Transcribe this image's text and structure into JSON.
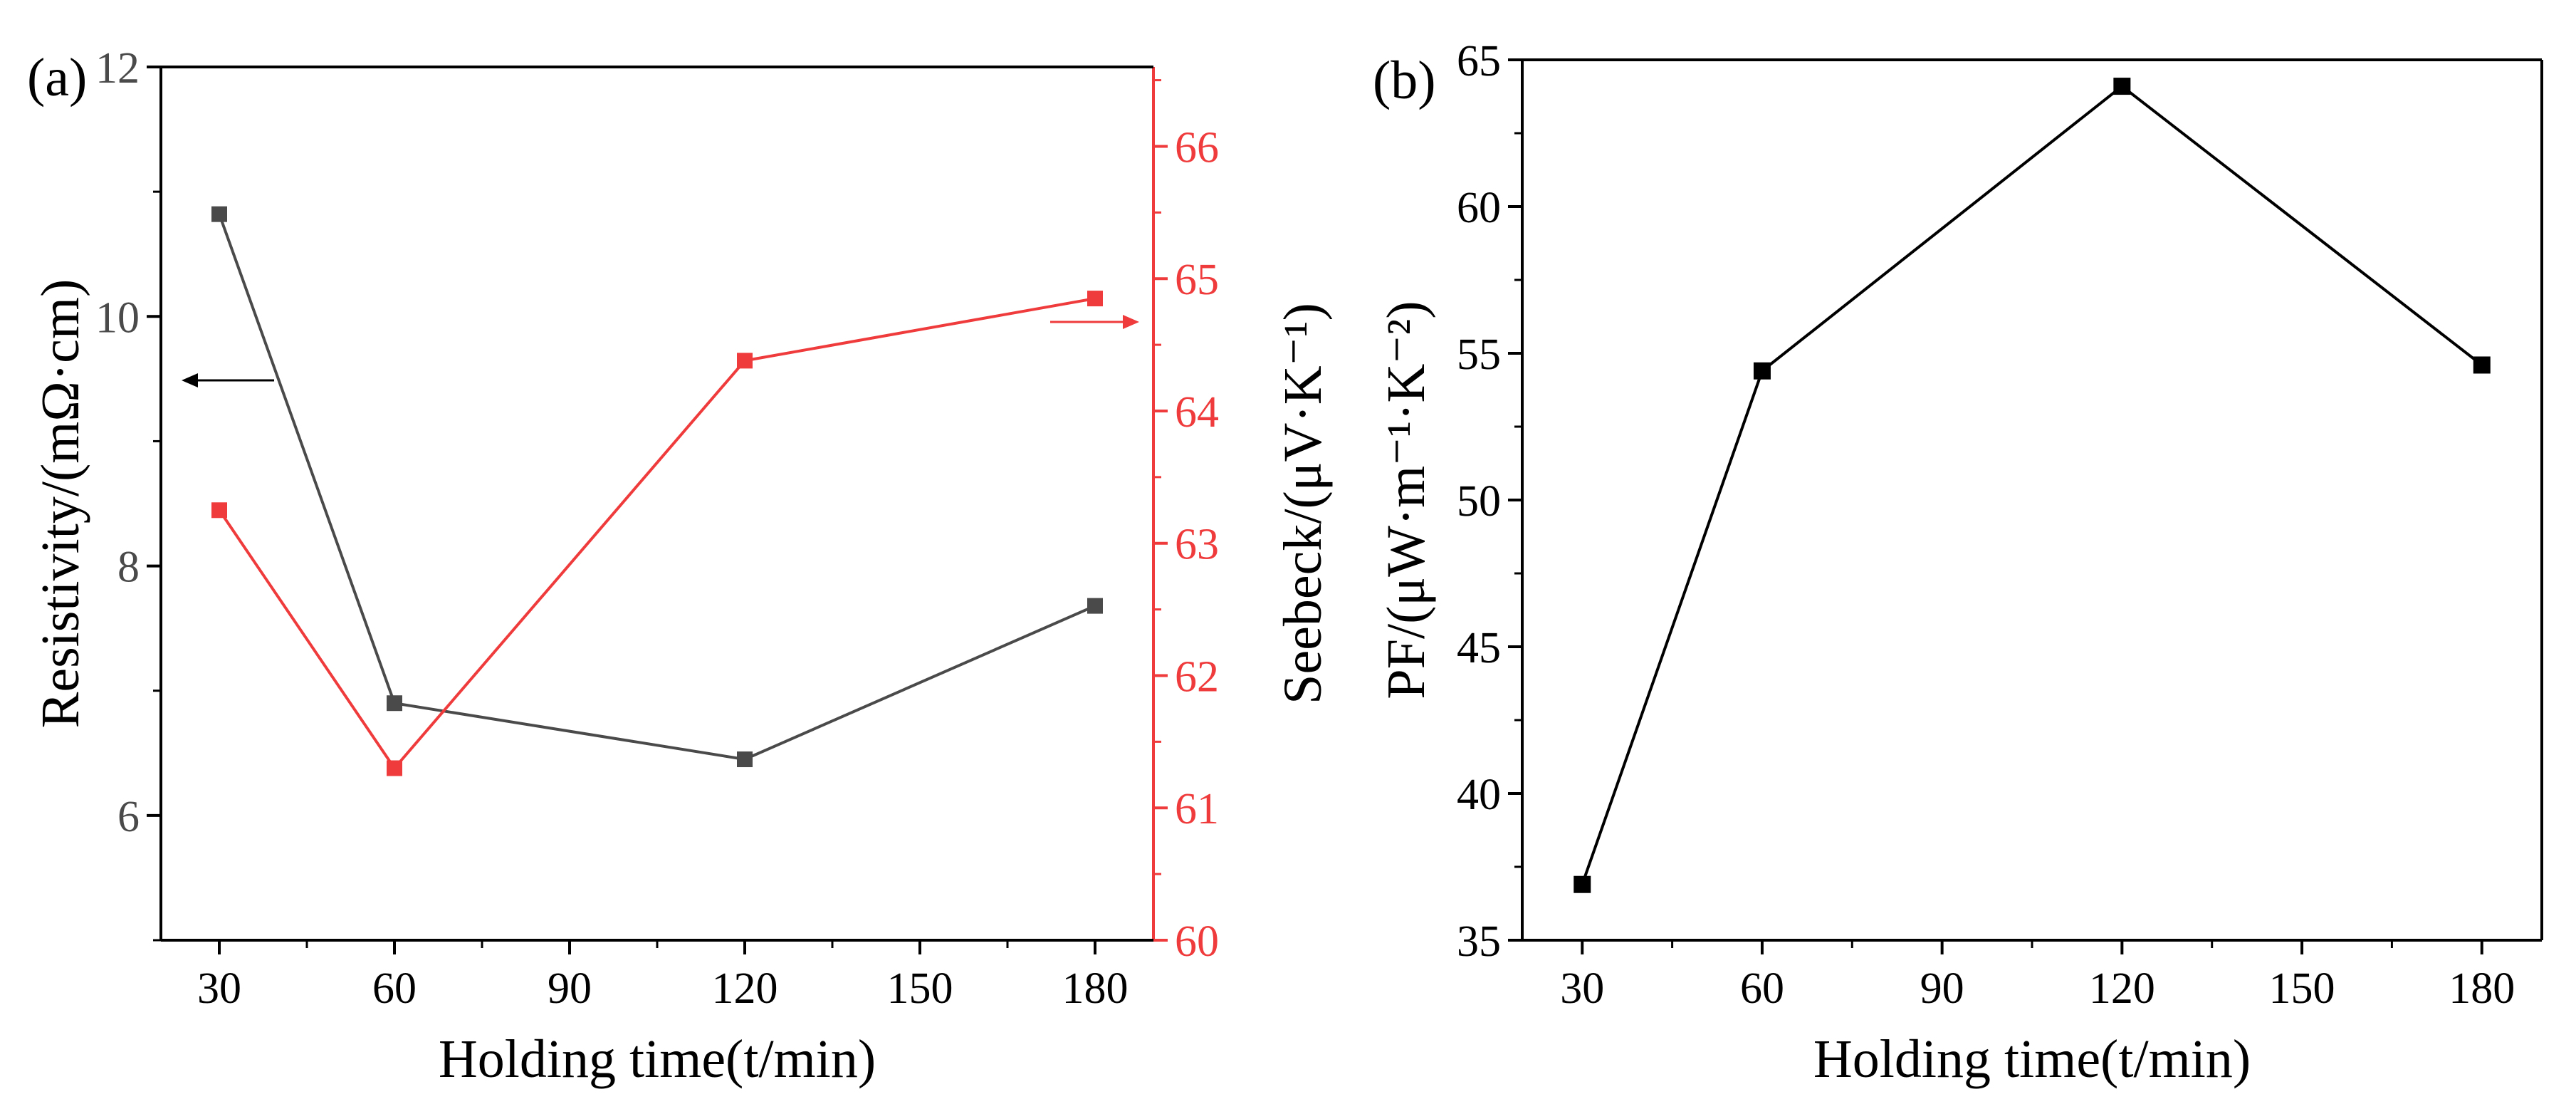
{
  "colors": {
    "axis": "#000000",
    "resistivity": "#4a4a4a",
    "seebeck": "#ef3b3b",
    "pf": "#000000",
    "background": "#ffffff"
  },
  "chart_data": [
    {
      "id": "a",
      "panel_label": "(a)",
      "type": "line",
      "xlabel": "Holding time(t/min)",
      "xlim": [
        20,
        190
      ],
      "xticks": [
        30,
        60,
        90,
        120,
        150,
        180
      ],
      "x": [
        30,
        60,
        120,
        180
      ],
      "series": [
        {
          "name": "Resistivity",
          "axis": "left",
          "ylabel": "Resistivity/(mΩ·cm)",
          "ylim": [
            5,
            12
          ],
          "yticks": [
            6,
            8,
            10,
            12
          ],
          "values": [
            10.82,
            6.9,
            6.45,
            7.68
          ],
          "indicator_arrow": "left"
        },
        {
          "name": "Seebeck",
          "axis": "right",
          "ylabel": "Seebeck/(μV·K⁻¹)",
          "ylim": [
            60,
            66.6
          ],
          "yticks": [
            60,
            61,
            62,
            63,
            64,
            65,
            66
          ],
          "values": [
            63.25,
            61.3,
            64.38,
            64.85
          ],
          "indicator_arrow": "right"
        }
      ]
    },
    {
      "id": "b",
      "panel_label": "(b)",
      "type": "line",
      "xlabel": "Holding time(t/min)",
      "xlim": [
        20,
        190
      ],
      "xticks": [
        30,
        60,
        90,
        120,
        150,
        180
      ],
      "ylabel": "PF/(μW·m⁻¹·K⁻²)",
      "ylim": [
        35,
        65
      ],
      "yticks": [
        35,
        40,
        45,
        50,
        55,
        60,
        65
      ],
      "x": [
        30,
        60,
        120,
        180
      ],
      "series": [
        {
          "name": "PF",
          "values": [
            36.9,
            54.4,
            64.1,
            54.6
          ]
        }
      ]
    }
  ]
}
